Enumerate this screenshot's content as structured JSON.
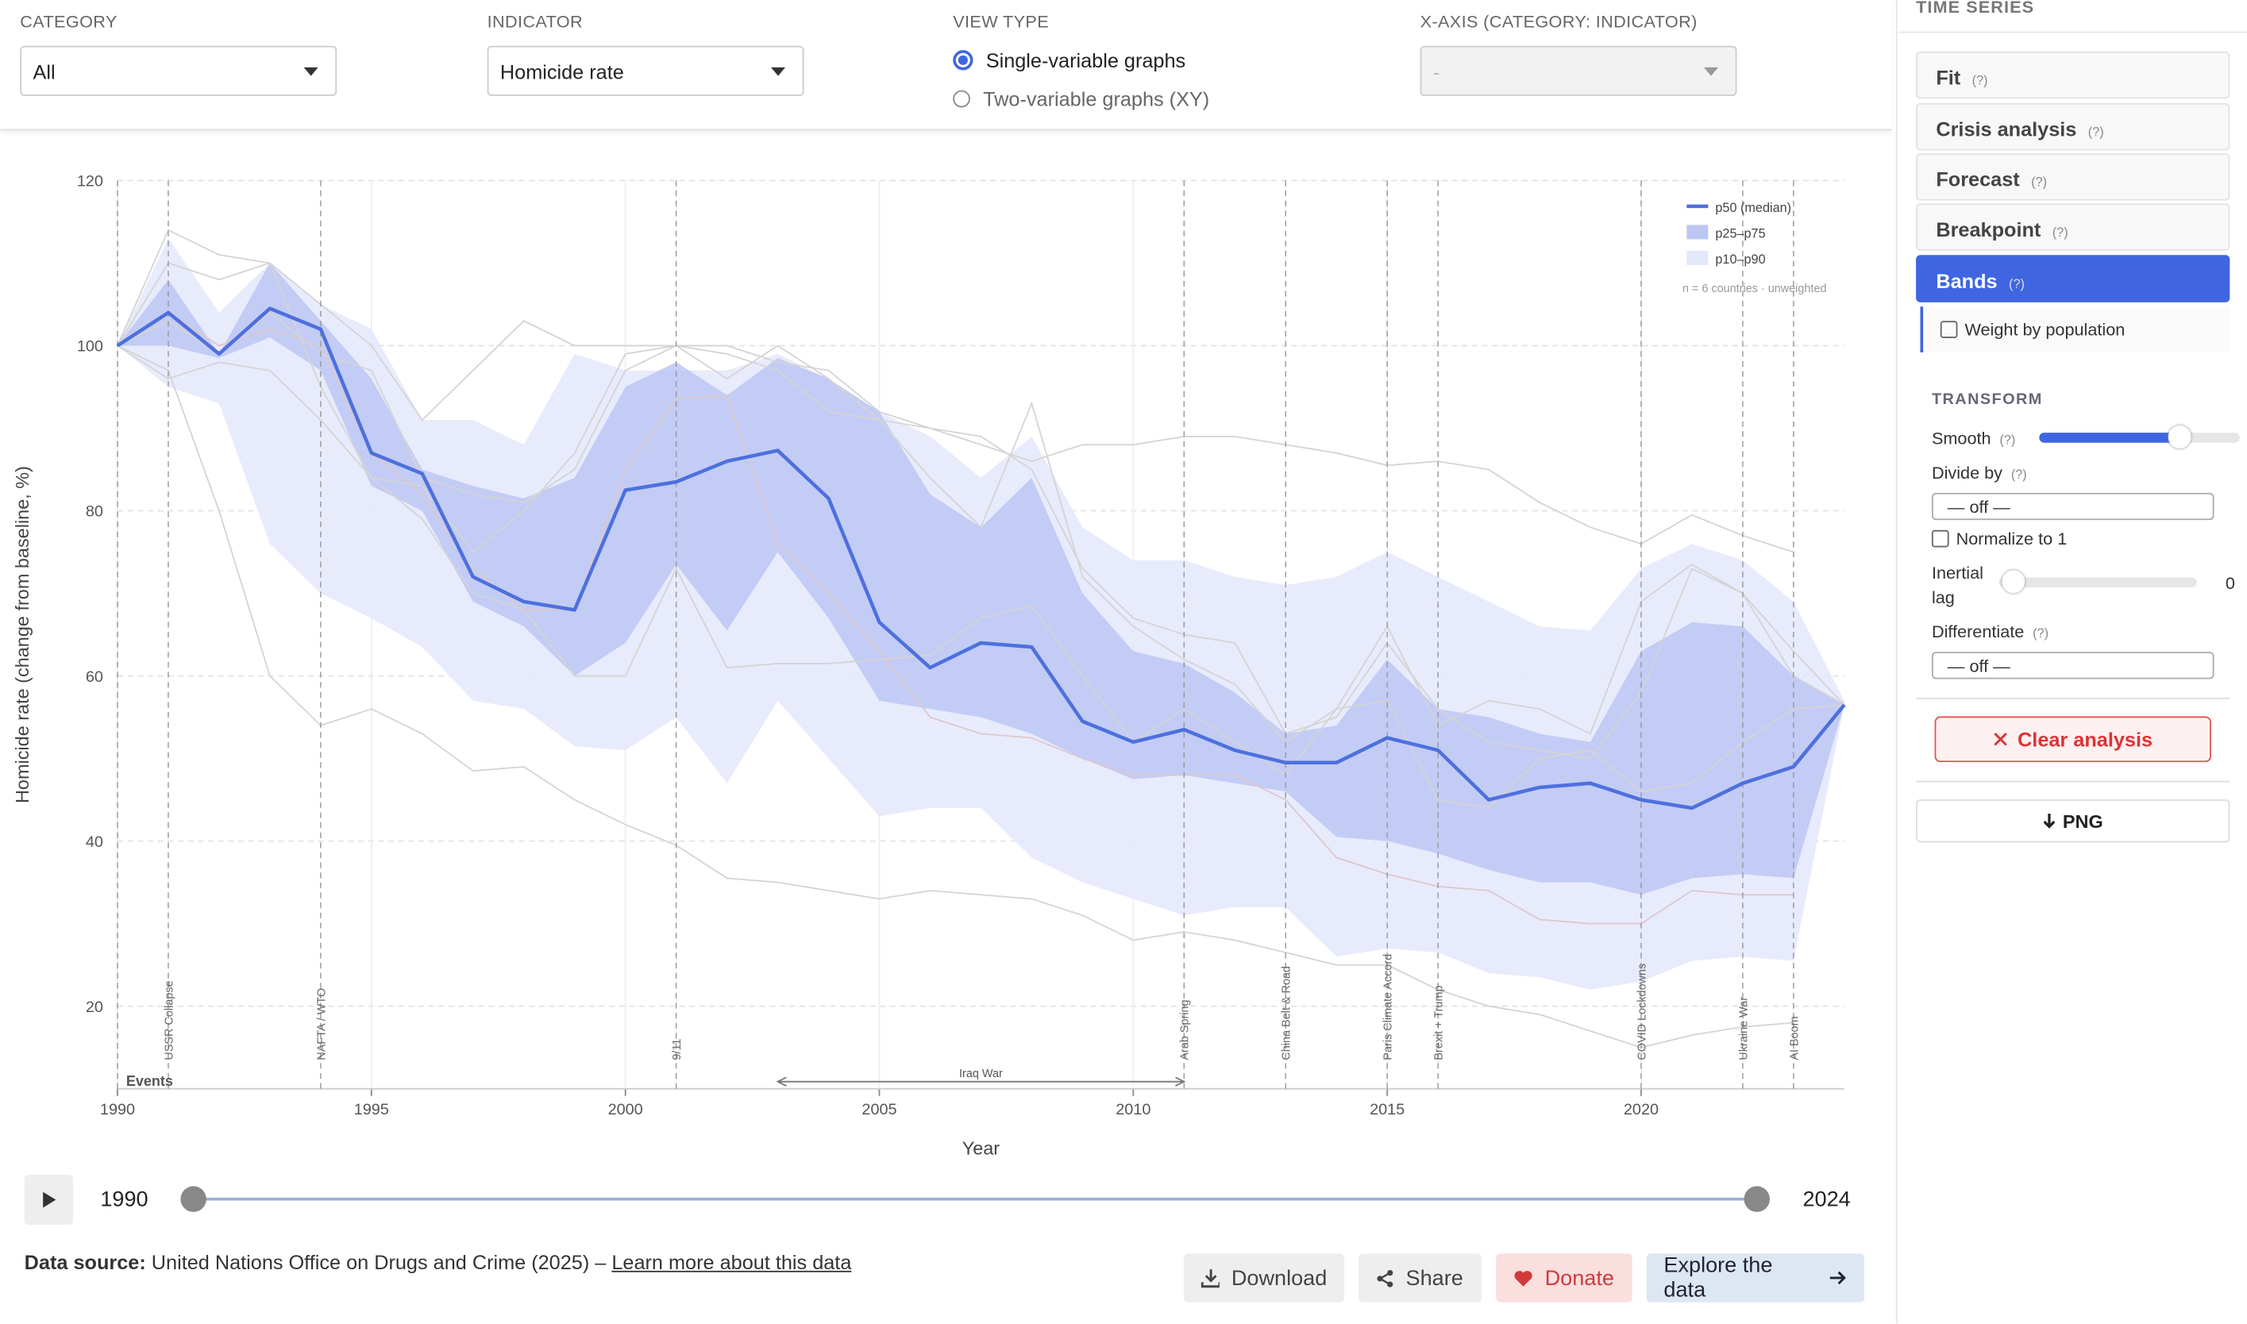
{
  "controls": {
    "category": {
      "label": "CATEGORY",
      "value": "All"
    },
    "indicator": {
      "label": "INDICATOR",
      "value": "Homicide rate"
    },
    "view_type": {
      "label": "VIEW TYPE",
      "options": [
        "Single-variable graphs",
        "Two-variable graphs (XY)"
      ]
    },
    "x_axis": {
      "label": "X-AXIS (CATEGORY: INDICATOR)",
      "value": "-"
    }
  },
  "chart_data": {
    "type": "line",
    "xlabel": "Year",
    "ylabel": "Homicide rate (change from baseline, %)",
    "x": [
      1990,
      1991,
      1992,
      1993,
      1994,
      1995,
      1996,
      1997,
      1998,
      1999,
      2000,
      2001,
      2002,
      2003,
      2004,
      2005,
      2006,
      2007,
      2008,
      2009,
      2010,
      2011,
      2012,
      2013,
      2014,
      2015,
      2016,
      2017,
      2018,
      2019,
      2020,
      2021,
      2022,
      2023,
      2024
    ],
    "xlim": [
      1990,
      2024
    ],
    "ylim": [
      10,
      120
    ],
    "xticks": [
      1990,
      1995,
      2000,
      2005,
      2010,
      2015,
      2020
    ],
    "yticks": [
      20,
      40,
      60,
      80,
      100,
      120
    ],
    "grid": true,
    "series": [
      {
        "name": "p50 (median)",
        "color": "#4d70de",
        "values": [
          100,
          104,
          99,
          104.5,
          102,
          87,
          84.5,
          72,
          69,
          68,
          82.5,
          83.5,
          86,
          87.3,
          81.5,
          66.5,
          61,
          64,
          63.5,
          54.5,
          52,
          53.5,
          51,
          49.5,
          49.5,
          52.5,
          51,
          45,
          46.5,
          47,
          45,
          44,
          47,
          49,
          56.5
        ]
      }
    ],
    "bands": [
      {
        "name": "p25–p75",
        "color": "#bcc7f3",
        "upper": [
          100,
          108,
          99,
          110,
          103,
          96,
          85,
          83,
          81.5,
          84,
          95,
          98,
          94,
          98.5,
          96,
          92,
          82,
          78,
          84,
          70,
          63,
          61.5,
          58,
          53,
          54,
          62,
          56,
          55,
          53,
          52,
          63,
          66.5,
          66,
          60,
          56.5
        ],
        "lower": [
          100,
          100,
          98.5,
          101,
          97,
          83,
          80,
          69,
          66,
          60,
          64,
          73.5,
          65.5,
          75,
          67,
          57,
          56,
          55,
          53,
          50,
          47.5,
          48,
          47,
          46,
          40.5,
          40,
          38.5,
          36.5,
          35,
          35,
          33.5,
          35.5,
          36,
          35.5,
          56.5
        ]
      },
      {
        "name": "p10–p90",
        "color": "#e4e8fb",
        "upper": [
          100,
          113,
          104,
          110,
          105,
          102,
          91,
          91,
          88,
          99,
          97,
          97,
          97,
          99,
          96,
          92,
          89,
          84,
          89,
          78,
          74,
          74,
          72,
          71,
          72,
          75,
          72,
          69,
          66,
          65.5,
          73,
          76,
          74,
          69,
          57
        ],
        "lower": [
          100,
          95,
          93,
          76,
          70,
          67,
          63.5,
          57,
          56,
          51.5,
          51,
          55,
          47,
          57,
          50,
          43,
          44,
          44,
          38,
          35,
          33,
          31,
          32,
          32,
          26,
          27,
          26.5,
          24,
          23.5,
          22,
          23,
          25.5,
          26,
          25.5,
          56.5
        ]
      }
    ],
    "country_lines": [
      {
        "color": "#d4d4d4",
        "values": [
          100,
          114,
          111,
          110,
          95,
          84,
          83,
          75,
          80,
          87,
          99,
          100,
          100,
          98,
          97,
          92,
          90,
          89,
          85,
          73,
          67,
          65,
          64,
          53,
          55,
          64,
          56,
          52,
          51,
          50,
          58,
          73,
          70,
          63,
          56.5
        ]
      },
      {
        "color": "#d4d4d4",
        "values": [
          100,
          110,
          108,
          110,
          105,
          100,
          91,
          97,
          103,
          100,
          100,
          100,
          99,
          97,
          92,
          91,
          90,
          88,
          86,
          88,
          88,
          89,
          89,
          88,
          87,
          85.5,
          86,
          85,
          81,
          78,
          76,
          79.5,
          77,
          75,
          null
        ]
      },
      {
        "color": "#d4d4d4",
        "values": [
          100,
          97,
          80,
          60,
          54,
          56,
          53,
          48.5,
          49,
          45,
          42,
          39.5,
          35.5,
          35,
          34,
          33,
          34,
          33.5,
          33,
          31,
          28,
          29,
          28,
          26.5,
          25,
          25,
          22,
          20,
          19,
          17,
          15,
          16.5,
          17.5,
          18,
          null
        ]
      },
      {
        "color": "#d4d4d4",
        "values": [
          100,
          96,
          98,
          97,
          91,
          84,
          79,
          70,
          68,
          60,
          60,
          73,
          61,
          61.5,
          61.5,
          62,
          62.5,
          67,
          68.5,
          60,
          52,
          56,
          52,
          48,
          56,
          57,
          45,
          44,
          50,
          51,
          46,
          47,
          52,
          56,
          56.5
        ]
      },
      {
        "color": "#dcc8cc",
        "values": [
          100,
          104,
          100,
          102,
          100,
          87,
          82,
          73,
          68,
          68,
          85,
          93.5,
          94,
          76,
          70,
          63,
          55,
          53,
          52.5,
          50,
          48,
          48,
          48,
          45,
          38,
          36,
          34.5,
          34,
          30.5,
          30,
          30,
          34,
          33.5,
          33.5,
          null
        ]
      },
      {
        "color": "#d4d4d4",
        "values": [
          100,
          103,
          99,
          104,
          99,
          97,
          84,
          82,
          81,
          85,
          97,
          100,
          96,
          100,
          96,
          91,
          84,
          78,
          93,
          72,
          66,
          62,
          59,
          52,
          56,
          66,
          54,
          57,
          56,
          53,
          69,
          73.5,
          70,
          60,
          56.5
        ]
      }
    ],
    "events_title": "Events",
    "events": [
      {
        "year": 1991,
        "label": "USSR Collapse"
      },
      {
        "year": 1994,
        "label": "NAFTA / WTO"
      },
      {
        "year": 2001,
        "label": "9/11"
      },
      {
        "year": 2011,
        "label": "Arab Spring"
      },
      {
        "year": 2013,
        "label": "China Belt & Road"
      },
      {
        "year": 2015,
        "label": "Paris Climate Accord"
      },
      {
        "year": 2016,
        "label": "Brexit + Trump"
      },
      {
        "year": 2020,
        "label": "COVID Lockdowns"
      },
      {
        "year": 2022,
        "label": "Ukraine War"
      },
      {
        "year": 2023,
        "label": "AI Boom"
      }
    ],
    "range_events": [
      {
        "start": 2003,
        "end": 2011,
        "label": "Iraq War"
      }
    ],
    "note": "n = 6 countries · unweighted"
  },
  "timeline": {
    "start": "1990",
    "end": "2024"
  },
  "footer": {
    "source_label": "Data source:",
    "source": "United Nations Office on Drugs and Crime (2025) –",
    "link": "Learn more about this data",
    "buttons": [
      "Download",
      "Share",
      "Donate",
      "Explore the data"
    ]
  },
  "sidebar": {
    "title": "TIME SERIES",
    "analyses": [
      "Fit",
      "Crisis analysis",
      "Forecast",
      "Breakpoint",
      "Bands"
    ],
    "help": "(?)",
    "weight": "Weight by population",
    "transform": "TRANSFORM",
    "smooth": "Smooth",
    "divide_by": "Divide by",
    "divide_value": "— off —",
    "normalize": "Normalize to 1",
    "lag": "Inertial lag",
    "lag_value": "0",
    "differentiate": "Differentiate",
    "diff_value": "— off —",
    "clear": "Clear analysis",
    "png": "PNG"
  }
}
